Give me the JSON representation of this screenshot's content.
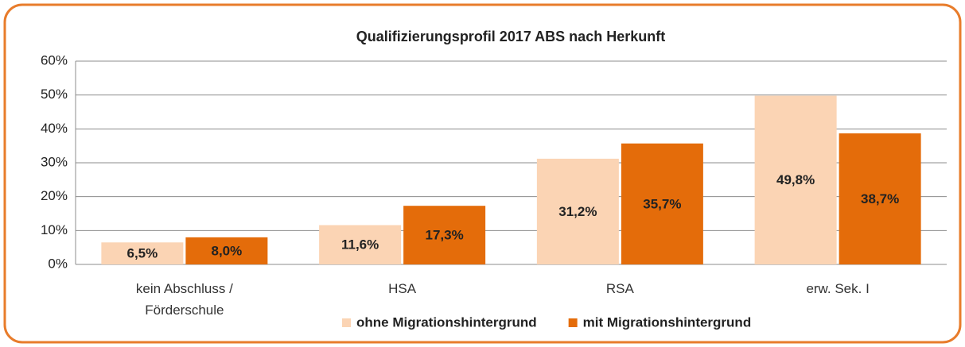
{
  "chart_data": {
    "type": "bar",
    "title": "Qualifizierungsprofil 2017 ABS nach Herkunft",
    "categories": [
      "kein Abschluss /\nFörderschule",
      "HSA",
      "RSA",
      "erw. Sek. I"
    ],
    "series": [
      {
        "name": "ohne Migrationshintergrund",
        "color": "#fbd4b4",
        "values": [
          6.5,
          11.6,
          31.2,
          49.8
        ],
        "value_labels": [
          "6,5%",
          "11,6%",
          "31,2%",
          "49,8%"
        ]
      },
      {
        "name": "mit Migrationshintergrund",
        "color": "#e46c0a",
        "values": [
          8.0,
          17.3,
          35.7,
          38.7
        ],
        "value_labels": [
          "8,0%",
          "17,3%",
          "35,7%",
          "38,7%"
        ]
      }
    ],
    "ylim": [
      0,
      60
    ],
    "yticks": [
      {
        "value": 0,
        "label": "0%"
      },
      {
        "value": 10,
        "label": "10%"
      },
      {
        "value": 20,
        "label": "20%"
      },
      {
        "value": 30,
        "label": "30%"
      },
      {
        "value": 40,
        "label": "40%"
      },
      {
        "value": 50,
        "label": "50%"
      },
      {
        "value": 60,
        "label": "60%"
      }
    ],
    "grid": true,
    "legend": "bottom"
  }
}
